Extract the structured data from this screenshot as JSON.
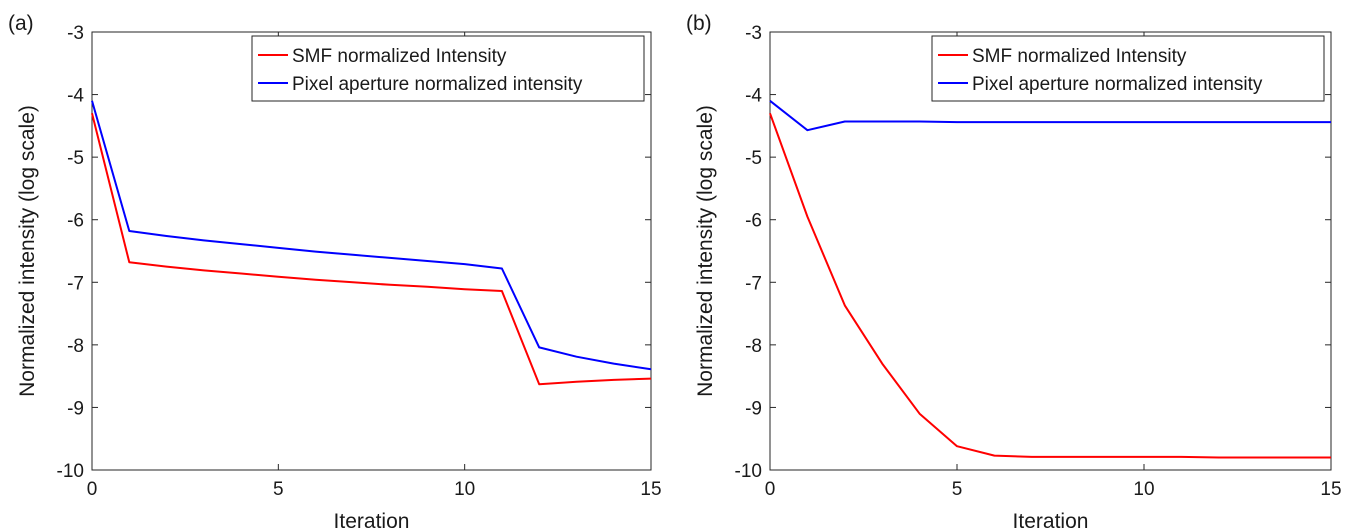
{
  "chart_data": [
    {
      "type": "line",
      "panel_label": "(a)",
      "xlabel": "Iteration",
      "ylabel": "Normalized intensity (log scale)",
      "xlim": [
        0,
        15
      ],
      "ylim": [
        -10,
        -3
      ],
      "xticks": [
        "0",
        "5",
        "10",
        "15"
      ],
      "yticks": [
        "-3",
        "-4",
        "-5",
        "-6",
        "-7",
        "-8",
        "-9",
        "-10"
      ],
      "grid": false,
      "legend_position": "top-right",
      "series": [
        {
          "name": "SMF normalized Intensity",
          "color": "#ff0000",
          "x": [
            0,
            1,
            2,
            3,
            4,
            5,
            6,
            7,
            8,
            9,
            10,
            11,
            12,
            13,
            14,
            15
          ],
          "y": [
            -4.3,
            -6.68,
            -6.75,
            -6.81,
            -6.86,
            -6.91,
            -6.96,
            -7.0,
            -7.04,
            -7.07,
            -7.11,
            -7.14,
            -8.63,
            -8.59,
            -8.56,
            -8.54
          ]
        },
        {
          "name": "Pixel aperture normalized intensity",
          "color": "#0000ff",
          "x": [
            0,
            1,
            2,
            3,
            4,
            5,
            6,
            7,
            8,
            9,
            10,
            11,
            12,
            13,
            14,
            15
          ],
          "y": [
            -4.1,
            -6.18,
            -6.26,
            -6.33,
            -6.39,
            -6.45,
            -6.51,
            -6.56,
            -6.61,
            -6.66,
            -6.71,
            -6.78,
            -8.04,
            -8.19,
            -8.3,
            -8.39
          ]
        }
      ]
    },
    {
      "type": "line",
      "panel_label": "(b)",
      "xlabel": "Iteration",
      "ylabel": "Normalized intensity (log scale)",
      "xlim": [
        0,
        15
      ],
      "ylim": [
        -10,
        -3
      ],
      "xticks": [
        "0",
        "5",
        "10",
        "15"
      ],
      "yticks": [
        "-3",
        "-4",
        "-5",
        "-6",
        "-7",
        "-8",
        "-9",
        "-10"
      ],
      "grid": false,
      "legend_position": "top-right",
      "series": [
        {
          "name": "SMF normalized Intensity",
          "color": "#ff0000",
          "x": [
            0,
            1,
            2,
            3,
            4,
            5,
            6,
            7,
            8,
            9,
            10,
            11,
            12,
            13,
            14,
            15
          ],
          "y": [
            -4.3,
            -5.95,
            -7.37,
            -8.3,
            -9.1,
            -9.62,
            -9.77,
            -9.79,
            -9.79,
            -9.79,
            -9.79,
            -9.79,
            -9.8,
            -9.8,
            -9.8,
            -9.8
          ]
        },
        {
          "name": "Pixel aperture normalized intensity",
          "color": "#0000ff",
          "x": [
            0,
            1,
            2,
            3,
            4,
            5,
            6,
            7,
            8,
            9,
            10,
            11,
            12,
            13,
            14,
            15
          ],
          "y": [
            -4.1,
            -4.57,
            -4.43,
            -4.43,
            -4.43,
            -4.44,
            -4.44,
            -4.44,
            -4.44,
            -4.44,
            -4.44,
            -4.44,
            -4.44,
            -4.44,
            -4.44,
            -4.44
          ]
        }
      ]
    }
  ]
}
